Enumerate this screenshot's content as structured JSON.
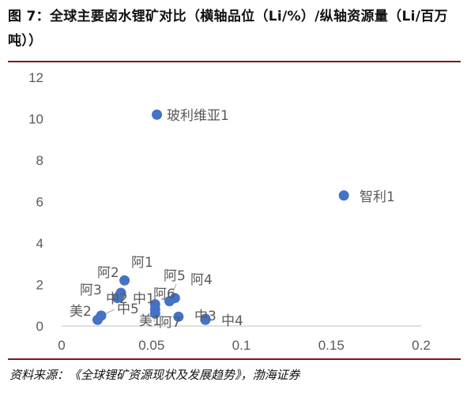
{
  "header": {
    "title": "图 7：全球主要卤水锂矿对比（横轴品位（Li/%）/纵轴资源量（Li/百万吨））"
  },
  "footer": {
    "source": "资料来源：《全球锂矿资源现状及发展趋势》，渤海证券"
  },
  "chart_data": {
    "type": "scatter",
    "title": "",
    "xlabel": "",
    "ylabel": "",
    "xlim": [
      0,
      0.2
    ],
    "ylim": [
      0,
      12
    ],
    "x_ticks": [
      "0",
      "0.05",
      "0.1",
      "0.15",
      "0.2"
    ],
    "y_ticks": [
      "0",
      "2",
      "4",
      "6",
      "8",
      "10",
      "12"
    ],
    "grid": false,
    "legend": "none",
    "marker_color": "#4472C4",
    "points": [
      {
        "label": "玻利维亚1",
        "x": 0.053,
        "y": 10.2
      },
      {
        "label": "智利1",
        "x": 0.157,
        "y": 6.3
      },
      {
        "label": "阿1",
        "x": 0.035,
        "y": 2.2
      },
      {
        "label": "阿2",
        "x": 0.033,
        "y": 1.6
      },
      {
        "label": "阿3",
        "x": 0.031,
        "y": 1.35
      },
      {
        "label": "中2",
        "x": 0.032,
        "y": 1.45
      },
      {
        "label": "中1",
        "x": 0.052,
        "y": 1.05
      },
      {
        "label": "阿5",
        "x": 0.06,
        "y": 1.2
      },
      {
        "label": "阿4",
        "x": 0.063,
        "y": 1.35
      },
      {
        "label": "阿6",
        "x": 0.052,
        "y": 0.8
      },
      {
        "label": "中5",
        "x": 0.022,
        "y": 0.5
      },
      {
        "label": "美2",
        "x": 0.02,
        "y": 0.3
      },
      {
        "label": "美1",
        "x": 0.052,
        "y": 0.6
      },
      {
        "label": "阿7",
        "x": 0.065,
        "y": 0.45
      },
      {
        "label": "中3",
        "x": 0.08,
        "y": 0.35
      },
      {
        "label": "中4",
        "x": 0.08,
        "y": 0.3
      }
    ]
  }
}
